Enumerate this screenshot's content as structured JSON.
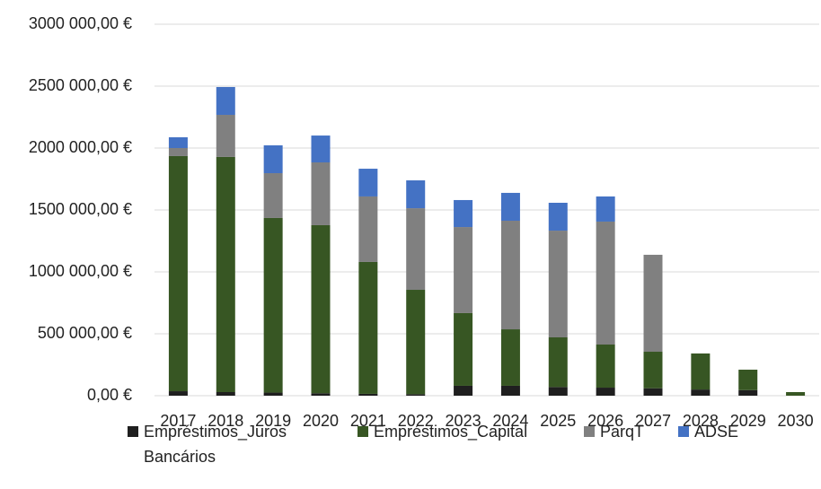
{
  "chart_data": {
    "type": "stacked_bar",
    "categories": [
      "2017",
      "2018",
      "2019",
      "2020",
      "2021",
      "2022",
      "2023",
      "2024",
      "2025",
      "2026",
      "2027",
      "2028",
      "2029",
      "2030"
    ],
    "series": [
      {
        "name": "Empréstimos_Juros Bancários",
        "color": "#1f1f1f",
        "values": [
          36000,
          29000,
          25000,
          20000,
          15000,
          12000,
          80000,
          80000,
          70000,
          65000,
          60000,
          50000,
          45000,
          0
        ]
      },
      {
        "name": "Empréstimos_Capital",
        "color": "#375623",
        "values": [
          1899000,
          1899000,
          1410000,
          1357000,
          1065000,
          843000,
          587000,
          456000,
          401000,
          348000,
          295000,
          291000,
          165000,
          29000
        ]
      },
      {
        "name": "ParqT",
        "color": "#808080",
        "values": [
          65000,
          340000,
          362000,
          507000,
          529000,
          659000,
          695000,
          877000,
          862000,
          993000,
          783000,
          0,
          0,
          0
        ]
      },
      {
        "name": "ADSE",
        "color": "#4472c4",
        "values": [
          87000,
          225000,
          225000,
          217000,
          224000,
          225000,
          218000,
          225000,
          225000,
          203000,
          0,
          0,
          0,
          0
        ]
      }
    ],
    "ylim": [
      0,
      3000000
    ],
    "yticks": [
      {
        "value": 0,
        "label": "0,00 €"
      },
      {
        "value": 500000,
        "label": "500 000,00 €"
      },
      {
        "value": 1000000,
        "label": "1000 000,00 €"
      },
      {
        "value": 1500000,
        "label": "1500 000,00 €"
      },
      {
        "value": 2000000,
        "label": "2000 000,00 €"
      },
      {
        "value": 2500000,
        "label": "2500 000,00 €"
      },
      {
        "value": 3000000,
        "label": "3000 000,00 €"
      }
    ],
    "grid": true,
    "legend": "bottom"
  }
}
